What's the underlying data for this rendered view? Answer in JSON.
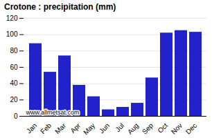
{
  "chart_data": {
    "type": "bar",
    "title": "Crotone : precipitation (mm)",
    "categories": [
      "Jan",
      "Feb",
      "Mar",
      "Apr",
      "May",
      "Jun",
      "Jul",
      "Aug",
      "Sep",
      "Oct",
      "Nov",
      "Dec"
    ],
    "values": [
      89,
      54,
      74,
      38,
      24,
      8,
      11,
      16,
      47,
      102,
      105,
      103
    ],
    "color": "#2222cc",
    "ylim": [
      0,
      120
    ],
    "yticks": [
      0,
      20,
      40,
      60,
      80,
      100,
      120
    ],
    "grid": true,
    "annotations": [
      "www.allmetsat.com"
    ]
  }
}
